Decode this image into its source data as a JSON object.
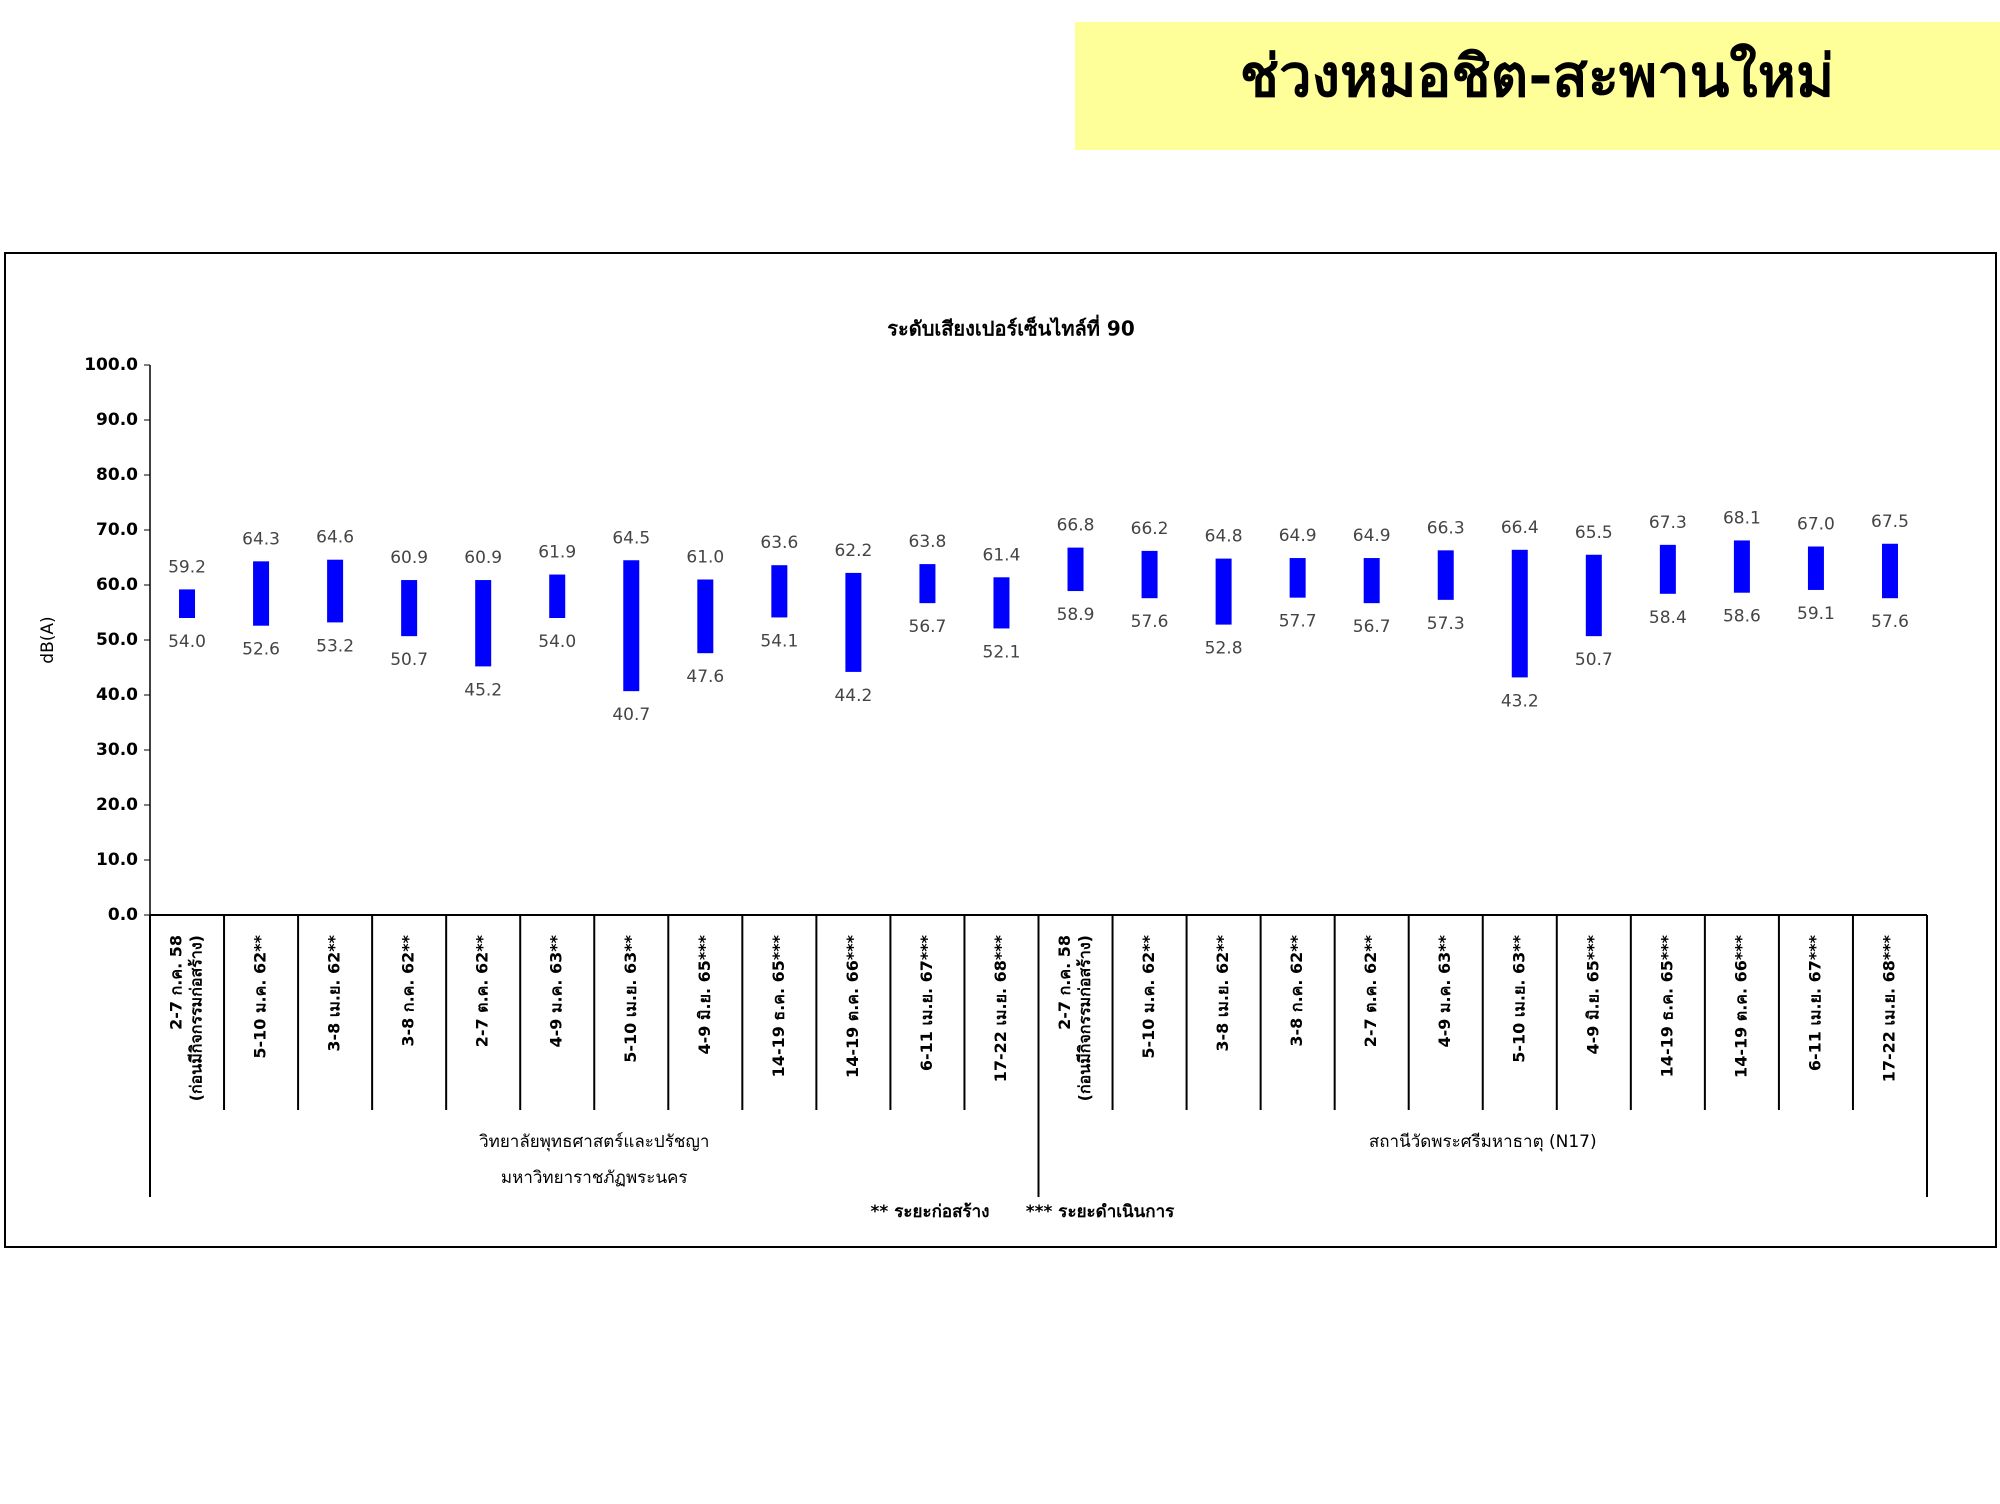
{
  "header": {
    "title": "ช่วงหมอชิต-สะพานใหม่"
  },
  "chart_data": {
    "type": "range",
    "title": "ระดับเสียงเปอร์เซ็นไทล์ที่ 90",
    "ylabel": "dB(A)",
    "ylim": [
      0,
      100
    ],
    "yticks": [
      {
        "value": 0,
        "label": "0.0"
      },
      {
        "value": 10,
        "label": "10.0"
      },
      {
        "value": 20,
        "label": "20.0"
      },
      {
        "value": 30,
        "label": "30.0"
      },
      {
        "value": 40,
        "label": "40.0"
      },
      {
        "value": 50,
        "label": "50.0"
      },
      {
        "value": 60,
        "label": "60.0"
      },
      {
        "value": 70,
        "label": "70.0"
      },
      {
        "value": 80,
        "label": "80.0"
      },
      {
        "value": 90,
        "label": "90.0"
      },
      {
        "value": 100,
        "label": "100.0"
      }
    ],
    "color": "#0000ff",
    "groups": [
      {
        "label": [
          "วิทยาลัยพุทธศาสตร์และปรัชญา",
          "มหาวิทยาราชภัฏพระนคร"
        ],
        "categories": [
          [
            "2-7 ก.ค. 58",
            "(ก่อนมีกิจกรรมก่อสร้าง)"
          ],
          "5-10 ม.ค. 62**",
          "3-8 เม.ย. 62**",
          "3-8 ก.ค. 62**",
          "2-7 ต.ค. 62**",
          "4-9 ม.ค. 63**",
          "5-10 เม.ย. 63**",
          "4-9 มิ.ย. 65***",
          "14-19 ธ.ค. 65***",
          "14-19 ต.ค. 66***",
          "6-11 เม.ย. 67***",
          "17-22 เม.ย. 68***"
        ],
        "high": [
          59.2,
          64.3,
          64.6,
          60.9,
          60.9,
          61.9,
          64.5,
          61.0,
          63.6,
          62.2,
          63.8,
          61.4
        ],
        "high_labels": [
          "59.2",
          "64.3",
          "64.6",
          "60.9",
          "60.9",
          "61.9",
          "64.5",
          "61.0",
          "63.6",
          "62.2",
          "63.8",
          "61.4"
        ],
        "low": [
          54.0,
          52.6,
          53.2,
          50.7,
          45.2,
          54.0,
          40.7,
          47.6,
          54.1,
          44.2,
          56.7,
          52.1
        ],
        "low_labels": [
          "54.0",
          "52.6",
          "53.2",
          "50.7",
          "45.2",
          "54.0",
          "40.7",
          "47.6",
          "54.1",
          "44.2",
          "56.7",
          "52.1"
        ]
      },
      {
        "label": [
          "สถานีวัดพระศรีมหาธาตุ (N17)"
        ],
        "categories": [
          [
            "2-7 ก.ค. 58",
            "(ก่อนมีกิจกรรมก่อสร้าง)"
          ],
          "5-10 ม.ค. 62**",
          "3-8 เม.ย. 62**",
          "3-8 ก.ค. 62**",
          "2-7 ต.ค. 62**",
          "4-9 ม.ค. 63**",
          "5-10 เม.ย. 63**",
          "4-9 มิ.ย. 65***",
          "14-19 ธ.ค. 65***",
          "14-19 ต.ค. 66***",
          "6-11 เม.ย. 67***",
          "17-22 เม.ย. 68***"
        ],
        "high": [
          66.8,
          66.2,
          64.8,
          64.9,
          64.9,
          66.3,
          66.4,
          65.5,
          67.3,
          68.1,
          67.0,
          67.5
        ],
        "high_labels": [
          "66.8",
          "66.2",
          "64.8",
          "64.9",
          "64.9",
          "66.3",
          "66.4",
          "65.5",
          "67.3",
          "68.1",
          "67.0",
          "67.5"
        ],
        "low": [
          58.9,
          57.6,
          52.8,
          57.7,
          56.7,
          57.3,
          43.2,
          50.7,
          58.4,
          58.6,
          59.1,
          57.6
        ],
        "low_labels": [
          "58.9",
          "57.6",
          "52.8",
          "57.7",
          "56.7",
          "57.3",
          "43.2",
          "50.7",
          "58.4",
          "58.6",
          "59.1",
          "57.6"
        ]
      }
    ],
    "notes": [
      "** ระยะก่อสร้าง",
      "*** ระยะดำเนินการ"
    ]
  }
}
